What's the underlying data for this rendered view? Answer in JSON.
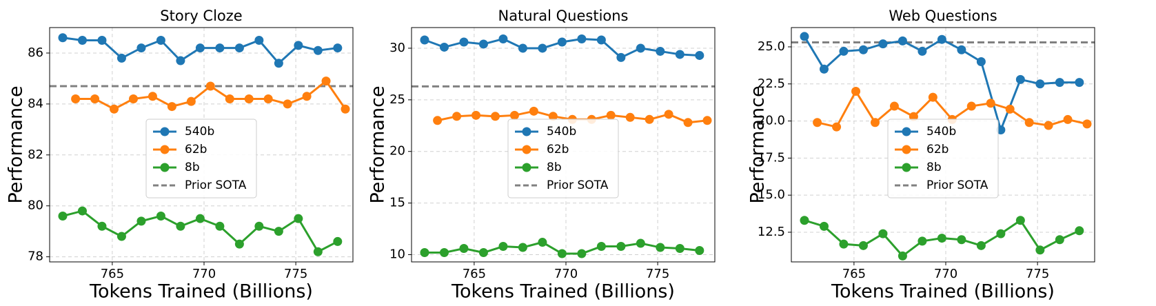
{
  "chart_data": [
    {
      "type": "line",
      "title": "Story Cloze",
      "xlabel": "Tokens Trained (Billions)",
      "ylabel": "Performance",
      "xlim": [
        762,
        777.7
      ],
      "xticks": [
        765,
        770,
        775
      ],
      "ylim": [
        77.8,
        87.0
      ],
      "yticks": [
        78,
        80,
        82,
        84,
        86
      ],
      "grid": true,
      "legend": "center",
      "series": [
        {
          "name": "540b",
          "color": "#1f77b4",
          "x": [
            762.3,
            763.37,
            764.44,
            765.51,
            766.58,
            767.65,
            768.72,
            769.79,
            770.86,
            771.93,
            773.0,
            774.07,
            775.14,
            776.21,
            777.28
          ],
          "values": [
            86.6,
            86.5,
            86.5,
            85.8,
            86.2,
            86.5,
            85.7,
            86.2,
            86.2,
            86.2,
            86.5,
            85.6,
            86.3,
            86.1,
            86.2
          ]
        },
        {
          "name": "62b",
          "color": "#ff7f0e",
          "x": [
            763.0,
            764.05,
            765.1,
            766.15,
            767.2,
            768.25,
            769.3,
            770.35,
            771.4,
            772.45,
            773.5,
            774.55,
            775.6,
            776.65,
            777.7
          ],
          "values": [
            84.2,
            84.2,
            83.8,
            84.2,
            84.3,
            83.9,
            84.1,
            84.7,
            84.2,
            84.2,
            84.2,
            84.0,
            84.3,
            84.9,
            83.8
          ]
        },
        {
          "name": "8b",
          "color": "#2ca02c",
          "x": [
            762.3,
            763.37,
            764.44,
            765.51,
            766.58,
            767.65,
            768.72,
            769.79,
            770.86,
            771.93,
            773.0,
            774.07,
            775.14,
            776.21,
            777.28
          ],
          "values": [
            79.6,
            79.8,
            79.2,
            78.8,
            79.4,
            79.6,
            79.2,
            79.5,
            79.2,
            78.5,
            79.2,
            79.0,
            79.5,
            78.2,
            78.6
          ]
        }
      ],
      "reference": {
        "name": "Prior SOTA",
        "color": "#808080",
        "value": 84.7
      }
    },
    {
      "type": "line",
      "title": "Natural Questions",
      "xlabel": "Tokens Trained (Billions)",
      "ylabel": "Performance",
      "xlim": [
        762,
        777.7
      ],
      "xticks": [
        765,
        770,
        775
      ],
      "ylim": [
        9.3,
        32
      ],
      "yticks": [
        10,
        15,
        20,
        25,
        30
      ],
      "grid": true,
      "legend": "center",
      "series": [
        {
          "name": "540b",
          "color": "#1f77b4",
          "x": [
            762.3,
            763.37,
            764.44,
            765.51,
            766.58,
            767.65,
            768.72,
            769.79,
            770.86,
            771.93,
            773.0,
            774.07,
            775.14,
            776.21,
            777.28
          ],
          "values": [
            30.8,
            30.1,
            30.6,
            30.4,
            30.9,
            30.0,
            30.0,
            30.6,
            30.9,
            30.8,
            29.1,
            30.0,
            29.7,
            29.4,
            29.3
          ]
        },
        {
          "name": "62b",
          "color": "#ff7f0e",
          "x": [
            763.0,
            764.05,
            765.1,
            766.15,
            767.2,
            768.25,
            769.3,
            770.35,
            771.4,
            772.45,
            773.5,
            774.55,
            775.6,
            776.65,
            777.7
          ],
          "values": [
            23.0,
            23.4,
            23.5,
            23.4,
            23.5,
            23.9,
            23.4,
            23.1,
            23.1,
            23.5,
            23.3,
            23.1,
            23.6,
            22.8,
            23.0
          ]
        },
        {
          "name": "8b",
          "color": "#2ca02c",
          "x": [
            762.3,
            763.37,
            764.44,
            765.51,
            766.58,
            767.65,
            768.72,
            769.79,
            770.86,
            771.93,
            773.0,
            774.07,
            775.14,
            776.21,
            777.28
          ],
          "values": [
            10.2,
            10.2,
            10.6,
            10.2,
            10.8,
            10.7,
            11.2,
            10.1,
            10.1,
            10.8,
            10.8,
            11.1,
            10.7,
            10.6,
            10.4
          ]
        }
      ],
      "reference": {
        "name": "Prior SOTA",
        "color": "#808080",
        "value": 26.3
      }
    },
    {
      "type": "line",
      "title": "Web Questions",
      "xlabel": "Tokens Trained (Billions)",
      "ylabel": "Performance",
      "xlim": [
        762,
        777.7
      ],
      "xticks": [
        765,
        770,
        775
      ],
      "ylim": [
        10.5,
        26.3
      ],
      "yticks": [
        12.5,
        {
          "value": 15,
          "label": "15.0"
        },
        17.5,
        {
          "value": 20,
          "label": "20.0"
        },
        22.5,
        {
          "value": 25,
          "label": "25.0"
        }
      ],
      "grid": true,
      "legend": "center",
      "series": [
        {
          "name": "540b",
          "color": "#1f77b4",
          "x": [
            762.3,
            763.37,
            764.44,
            765.51,
            766.58,
            767.65,
            768.72,
            769.79,
            770.86,
            771.93,
            773.0,
            774.07,
            775.14,
            776.21,
            777.28
          ],
          "values": [
            25.7,
            23.5,
            24.7,
            24.8,
            25.2,
            25.4,
            24.7,
            25.5,
            24.8,
            24.0,
            19.4,
            22.8,
            22.5,
            22.6,
            22.6
          ]
        },
        {
          "name": "62b",
          "color": "#ff7f0e",
          "x": [
            763.0,
            764.05,
            765.1,
            766.15,
            767.2,
            768.25,
            769.3,
            770.35,
            771.4,
            772.45,
            773.5,
            774.55,
            775.6,
            776.65,
            777.7
          ],
          "values": [
            19.9,
            19.6,
            22.0,
            19.9,
            21.0,
            20.3,
            21.6,
            20.1,
            21.0,
            21.2,
            20.8,
            19.9,
            19.7,
            20.1,
            19.8
          ]
        },
        {
          "name": "8b",
          "color": "#2ca02c",
          "x": [
            762.3,
            763.37,
            764.44,
            765.51,
            766.58,
            767.65,
            768.72,
            769.79,
            770.86,
            771.93,
            773.0,
            774.07,
            775.14,
            776.21,
            777.28
          ],
          "values": [
            13.3,
            12.9,
            11.7,
            11.6,
            12.4,
            10.9,
            11.9,
            12.1,
            12.0,
            11.6,
            12.4,
            13.3,
            11.3,
            12.0,
            12.6
          ]
        }
      ],
      "reference": {
        "name": "Prior SOTA",
        "color": "#808080",
        "value": 25.3
      }
    }
  ]
}
